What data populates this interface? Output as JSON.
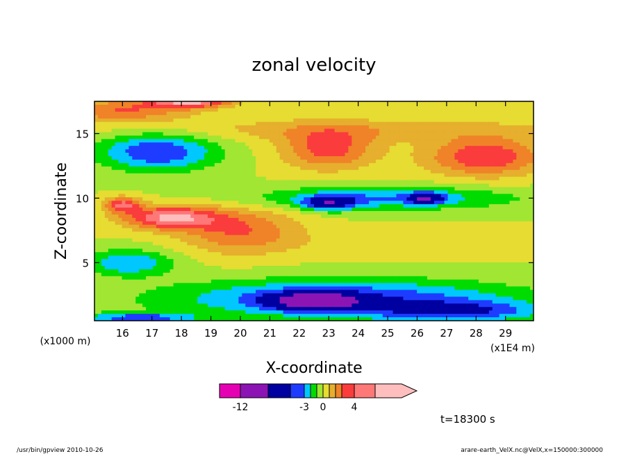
{
  "chart_data": {
    "type": "heatmap",
    "title": "zonal velocity",
    "xlabel": "X-coordinate",
    "ylabel": "Z-coordinate",
    "x_scale_note": "(x1E4 m)",
    "y_scale_note": "(x1000 m)",
    "xlim": [
      15.05,
      29.95
    ],
    "ylim": [
      0.5,
      17.5
    ],
    "x_ticks": [
      16,
      17,
      18,
      19,
      20,
      21,
      22,
      23,
      24,
      25,
      26,
      27,
      28,
      29
    ],
    "x_tick_labels": [
      "16",
      "17",
      "18",
      "19",
      "20",
      "21",
      "22",
      "23",
      "24",
      "25",
      "26",
      "27",
      "28",
      "29"
    ],
    "y_ticks": [
      5,
      10,
      15
    ],
    "y_tick_labels": [
      "5",
      "10",
      "15"
    ],
    "colorbar": {
      "colors": [
        "#e600b4",
        "#8c14b4",
        "#0000a0",
        "#1e3cff",
        "#00c8ff",
        "#00dc00",
        "#a0e632",
        "#e6dc32",
        "#e6af2d",
        "#f08228",
        "#fa3c3c",
        "#ff7878",
        "#ffbebe"
      ],
      "labels": [
        "-12",
        "-3",
        "0",
        "4"
      ],
      "label_values": [
        -12,
        -3,
        0,
        4
      ]
    },
    "time_label": "t=18300 s",
    "blobs": [
      {
        "value": 1.5,
        "x": 24.0,
        "z": 15.3,
        "rx": 8.0,
        "rz": 0.9
      },
      {
        "value": 3.0,
        "x": 20.0,
        "z": 7.5,
        "rx": 2.0,
        "rz": 1.8
      },
      {
        "value": 5.0,
        "x": 17.6,
        "z": 8.5,
        "rx": 1.6,
        "rz": 0.9
      },
      {
        "value": 3.0,
        "x": 16.0,
        "z": 16.8,
        "rx": 2.3,
        "rz": 0.9
      },
      {
        "value": 5.0,
        "x": 18.3,
        "z": 17.5,
        "rx": 1.4,
        "rz": 0.5
      },
      {
        "value": 3.5,
        "x": 23.0,
        "z": 13.8,
        "rx": 1.6,
        "rz": 1.6
      },
      {
        "value": 4.0,
        "x": 28.3,
        "z": 13.2,
        "rx": 2.0,
        "rz": 1.5
      },
      {
        "value": -3.0,
        "x": 24.8,
        "z": 10.0,
        "rx": 4.5,
        "rz": 0.9
      },
      {
        "value": -4.0,
        "x": 23.0,
        "z": 9.6,
        "rx": 0.9,
        "rz": 0.55
      },
      {
        "value": -4.0,
        "x": 26.3,
        "z": 10.0,
        "rx": 0.6,
        "rz": 0.45
      },
      {
        "value": -4.0,
        "x": 17.2,
        "z": 13.6,
        "rx": 2.0,
        "rz": 1.5
      },
      {
        "value": -3.0,
        "x": 16.2,
        "z": 5.0,
        "rx": 1.5,
        "rz": 1.0
      },
      {
        "value": -4.0,
        "x": 23.5,
        "z": 2.2,
        "rx": 6.0,
        "rz": 1.5
      },
      {
        "value": -3.0,
        "x": 27.5,
        "z": 1.2,
        "rx": 3.0,
        "rz": 0.8
      },
      {
        "value": -5.0,
        "x": 22.5,
        "z": 2.0,
        "rx": 1.5,
        "rz": 0.7
      },
      {
        "value": -3.5,
        "x": 16.5,
        "z": 0.7,
        "rx": 2.0,
        "rz": 0.4
      },
      {
        "value": 1.0,
        "x": 26.5,
        "z": 6.5,
        "rx": 4.5,
        "rz": 1.0
      },
      {
        "value": 4.0,
        "x": 16.0,
        "z": 9.5,
        "rx": 0.6,
        "rz": 0.6
      }
    ]
  },
  "footer": {
    "left": "/usr/bin/gpview  2010-10-26",
    "right": "arare-earth_VelX.nc@VelX,x=150000:300000"
  }
}
